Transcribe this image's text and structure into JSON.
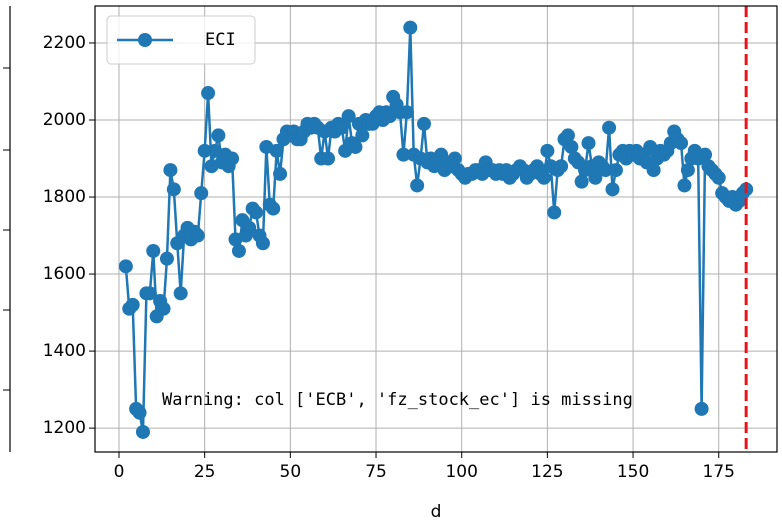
{
  "chart_data": {
    "type": "line",
    "xlabel": "d",
    "annotation": "Warning: col ['ECB', 'fz_stock_ec'] is missing",
    "x": [
      2,
      3,
      4,
      5,
      6,
      7,
      8,
      9,
      10,
      11,
      12,
      13,
      14,
      15,
      16,
      17,
      18,
      19,
      20,
      21,
      22,
      23,
      24,
      25,
      26,
      27,
      28,
      29,
      30,
      31,
      32,
      33,
      34,
      35,
      36,
      37,
      38,
      39,
      40,
      41,
      42,
      43,
      44,
      45,
      46,
      47,
      48,
      49,
      50,
      51,
      52,
      53,
      54,
      55,
      56,
      57,
      58,
      59,
      60,
      61,
      62,
      63,
      64,
      65,
      66,
      67,
      68,
      69,
      70,
      71,
      72,
      73,
      74,
      75,
      76,
      77,
      78,
      79,
      80,
      81,
      82,
      83,
      84,
      85,
      86,
      87,
      88,
      89,
      90,
      91,
      92,
      93,
      94,
      95,
      96,
      97,
      98,
      99,
      100,
      101,
      102,
      103,
      104,
      105,
      106,
      107,
      108,
      109,
      110,
      111,
      112,
      113,
      114,
      115,
      116,
      117,
      118,
      119,
      120,
      121,
      122,
      123,
      124,
      125,
      126,
      127,
      128,
      129,
      130,
      131,
      132,
      133,
      134,
      135,
      136,
      137,
      138,
      139,
      140,
      141,
      142,
      143,
      144,
      145,
      146,
      147,
      148,
      149,
      150,
      151,
      152,
      153,
      154,
      155,
      156,
      157,
      158,
      159,
      160,
      161,
      162,
      163,
      164,
      165,
      166,
      167,
      168,
      169,
      170,
      171,
      172,
      173,
      174,
      175,
      176,
      177,
      178,
      179,
      180,
      181,
      182,
      183
    ],
    "series": [
      {
        "name": "ECI",
        "color": "#1f77b4",
        "values": [
          1620,
          1510,
          1520,
          1250,
          1240,
          1190,
          1550,
          1550,
          1660,
          1490,
          1530,
          1510,
          1640,
          1870,
          1820,
          1680,
          1550,
          1700,
          1720,
          1690,
          1710,
          1700,
          1810,
          1920,
          2070,
          1880,
          1920,
          1960,
          1890,
          1910,
          1880,
          1900,
          1690,
          1660,
          1740,
          1700,
          1720,
          1770,
          1760,
          1700,
          1680,
          1930,
          1780,
          1770,
          1920,
          1860,
          1950,
          1970,
          1960,
          1970,
          1950,
          1950,
          1970,
          1990,
          1980,
          1990,
          1980,
          1900,
          1970,
          1900,
          1980,
          1970,
          1990,
          1980,
          1920,
          2010,
          1940,
          1930,
          1990,
          1960,
          2000,
          1990,
          1990,
          2010,
          2020,
          2000,
          2020,
          2010,
          2060,
          2040,
          2020,
          1910,
          2020,
          2240,
          1910,
          1830,
          1900,
          1990,
          1890,
          1900,
          1880,
          1890,
          1910,
          1870,
          1890,
          1880,
          1900,
          1870,
          1860,
          1850,
          1860,
          1860,
          1870,
          1870,
          1860,
          1890,
          1870,
          1870,
          1860,
          1870,
          1860,
          1870,
          1850,
          1860,
          1870,
          1880,
          1870,
          1850,
          1860,
          1870,
          1880,
          1860,
          1850,
          1920,
          1880,
          1760,
          1870,
          1880,
          1950,
          1960,
          1930,
          1900,
          1890,
          1840,
          1870,
          1940,
          1880,
          1850,
          1890,
          1880,
          1870,
          1980,
          1820,
          1870,
          1910,
          1920,
          1900,
          1920,
          1910,
          1920,
          1900,
          1910,
          1890,
          1930,
          1870,
          1900,
          1920,
          1910,
          1920,
          1940,
          1970,
          1950,
          1940,
          1830,
          1870,
          1900,
          1920,
          1900,
          1250,
          1910,
          1880,
          1870,
          1860,
          1850,
          1810,
          1800,
          1790,
          1800,
          1780,
          1790,
          1810,
          1820
        ]
      }
    ],
    "reference_line": {
      "x": 183,
      "color": "#e8141c",
      "style": "dashed"
    },
    "xlim": [
      -7,
      192
    ],
    "xticks": [
      0,
      25,
      50,
      75,
      100,
      125,
      150,
      175
    ],
    "ylim": [
      1138,
      2296
    ],
    "yticks": [
      1200,
      1400,
      1600,
      1800,
      2000,
      2200
    ],
    "grid": true,
    "legend": "upper left"
  }
}
